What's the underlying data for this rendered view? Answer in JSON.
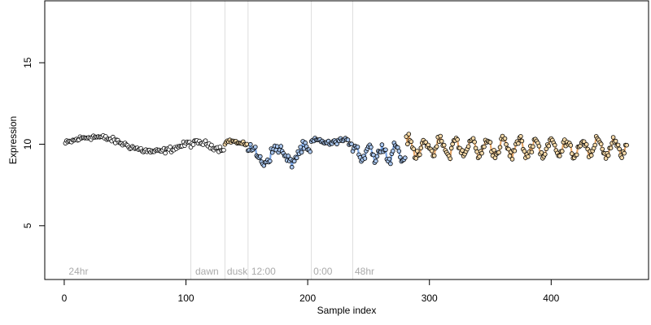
{
  "chart_data": {
    "type": "scatter",
    "title": "",
    "xlabel": "Sample index",
    "ylabel": "Expression",
    "xlim": [
      -16,
      480
    ],
    "ylim": [
      1.7,
      18.8
    ],
    "xticks": [
      0,
      100,
      200,
      300,
      400
    ],
    "yticks": [
      5,
      10,
      15
    ],
    "grid": false,
    "line_colors": {
      "blue": "#7aa6e6",
      "orange": "#e8a868"
    },
    "vertical_lines": [
      {
        "x": 104,
        "label": ""
      },
      {
        "x": 132,
        "label": ""
      },
      {
        "x": 151,
        "label": ""
      },
      {
        "x": 203,
        "label": ""
      },
      {
        "x": 237,
        "label": ""
      }
    ],
    "annotations": [
      {
        "x": 3,
        "y": 2.0,
        "text": "24hr"
      },
      {
        "x": 107,
        "y": 2.0,
        "text": "dawn"
      },
      {
        "x": 133,
        "y": 2.0,
        "text": "dusk"
      },
      {
        "x": 153,
        "y": 2.0,
        "text": "12:00"
      },
      {
        "x": 204,
        "y": 2.0,
        "text": "0:00"
      },
      {
        "x": 238,
        "y": 2.0,
        "text": "48hr"
      }
    ],
    "segments": [
      {
        "x0": 1,
        "x1": 103,
        "fill": "#ffffff",
        "line": "none",
        "center": 10.0,
        "amp": 0.45,
        "period": 100,
        "phase": 0.1,
        "noise": 0.18
      },
      {
        "x0": 104,
        "x1": 131,
        "fill": "#ffffff",
        "line": "none",
        "center": 9.9,
        "amp": 0.2,
        "period": 40,
        "phase": 0.5,
        "noise": 0.18
      },
      {
        "x0": 132,
        "x1": 150,
        "fill": "#f5d9a8",
        "line": "orange",
        "center": 10.1,
        "amp": 0.1,
        "period": 20,
        "phase": 0.0,
        "noise": 0.12
      },
      {
        "x0": 151,
        "x1": 202,
        "fill": "#a9c6ee",
        "line": "blue",
        "center": 9.35,
        "amp": 0.45,
        "period": 22,
        "phase": 1.0,
        "noise": 0.35
      },
      {
        "x0": 203,
        "x1": 236,
        "fill": "#a9c6ee",
        "line": "none",
        "center": 10.15,
        "amp": 0.1,
        "period": 20,
        "phase": 0.0,
        "noise": 0.15
      },
      {
        "x0": 237,
        "x1": 280,
        "fill": "#a9c6ee",
        "line": "blue",
        "center": 9.5,
        "amp": 0.5,
        "period": 11,
        "phase": 0.3,
        "noise": 0.3
      },
      {
        "x0": 281,
        "x1": 462,
        "fill": "#f5d9a8",
        "line": "orange",
        "center": 9.8,
        "amp": 0.5,
        "period": 13,
        "phase": 0.7,
        "noise": 0.32
      }
    ]
  }
}
